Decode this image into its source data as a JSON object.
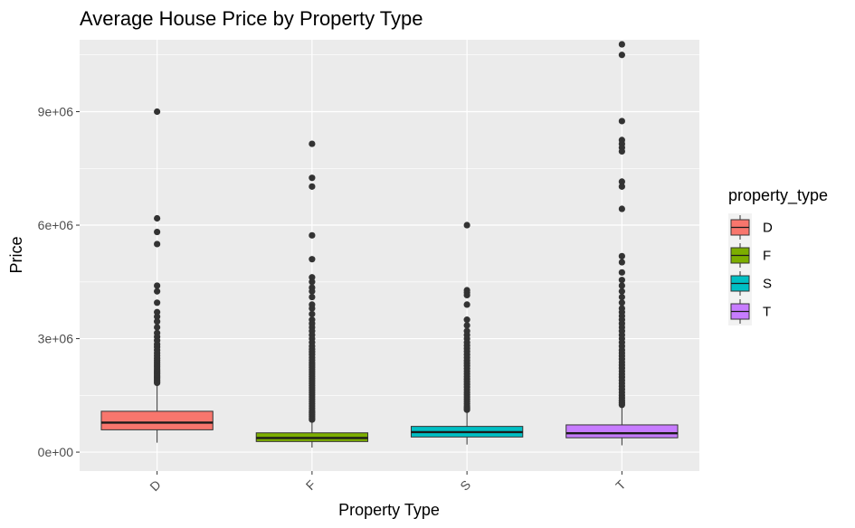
{
  "chart_data": {
    "type": "boxplot",
    "title": "Average House Price by Property Type",
    "xlabel": "Property Type",
    "ylabel": "Price",
    "ylim": [
      -500000,
      10900000
    ],
    "yticks": [
      0,
      3000000,
      6000000,
      9000000
    ],
    "ytick_labels": [
      "0e+00",
      "3e+06",
      "6e+06",
      "9e+06"
    ],
    "grid": true,
    "legend": {
      "title": "property_type",
      "placement": "right"
    },
    "categories": [
      "D",
      "F",
      "S",
      "T"
    ],
    "colors": [
      "#F8766D",
      "#7CAE00",
      "#00BFC4",
      "#C77CFF"
    ],
    "boxes": [
      {
        "label": "D",
        "whisker_low": 250000,
        "q1": 590000,
        "median": 780000,
        "q3": 1080000,
        "whisker_high": 1800000,
        "outliers": [
          9000000,
          6180000,
          5820000,
          5500000,
          4400000,
          4250000,
          3950000,
          3700000,
          3580000,
          3450000,
          3300000,
          3150000,
          3050000,
          2950000,
          2850000,
          2780000,
          2700000,
          2620000,
          2550000,
          2480000,
          2420000,
          2360000,
          2300000,
          2250000,
          2200000,
          2150000,
          2100000,
          2060000,
          2020000,
          1980000,
          1940000,
          1900000,
          1860000,
          1830000
        ]
      },
      {
        "label": "F",
        "whisker_low": 120000,
        "q1": 280000,
        "median": 375000,
        "q3": 510000,
        "whisker_high": 840000,
        "outliers": [
          8150000,
          7250000,
          7020000,
          5730000,
          5100000,
          4620000,
          4500000,
          4350000,
          4250000,
          4100000,
          3900000,
          3800000,
          3650000,
          3500000,
          3400000,
          3300000,
          3200000,
          3100000,
          3000000,
          2900000,
          2800000,
          2720000,
          2650000,
          2580000,
          2500000,
          2430000,
          2360000,
          2300000,
          2240000,
          2180000,
          2120000,
          2060000,
          2000000,
          1940000,
          1880000,
          1820000,
          1760000,
          1700000,
          1640000,
          1580000,
          1520000,
          1460000,
          1400000,
          1340000,
          1280000,
          1220000,
          1160000,
          1100000,
          1050000,
          1000000,
          950000,
          900000,
          860000
        ]
      },
      {
        "label": "S",
        "whisker_low": 200000,
        "q1": 400000,
        "median": 530000,
        "q3": 680000,
        "whisker_high": 1080000,
        "outliers": [
          6000000,
          4280000,
          4220000,
          4150000,
          3900000,
          3500000,
          3350000,
          3200000,
          3100000,
          3000000,
          2900000,
          2820000,
          2740000,
          2660000,
          2580000,
          2500000,
          2420000,
          2350000,
          2280000,
          2210000,
          2140000,
          2070000,
          2000000,
          1930000,
          1860000,
          1790000,
          1720000,
          1650000,
          1580000,
          1520000,
          1460000,
          1400000,
          1340000,
          1280000,
          1220000,
          1170000,
          1120000
        ]
      },
      {
        "label": "T",
        "whisker_low": 180000,
        "q1": 380000,
        "median": 500000,
        "q3": 720000,
        "whisker_high": 1200000,
        "outliers": [
          10780000,
          10500000,
          8750000,
          8250000,
          8150000,
          8050000,
          7950000,
          7150000,
          7020000,
          6430000,
          5180000,
          5020000,
          4750000,
          4550000,
          4400000,
          4250000,
          4100000,
          3950000,
          3800000,
          3700000,
          3600000,
          3500000,
          3400000,
          3300000,
          3200000,
          3100000,
          3000000,
          2900000,
          2800000,
          2700000,
          2620000,
          2540000,
          2460000,
          2380000,
          2300000,
          2220000,
          2140000,
          2060000,
          1980000,
          1900000,
          1820000,
          1740000,
          1660000,
          1580000,
          1500000,
          1430000,
          1360000,
          1300000,
          1250000
        ]
      }
    ]
  }
}
